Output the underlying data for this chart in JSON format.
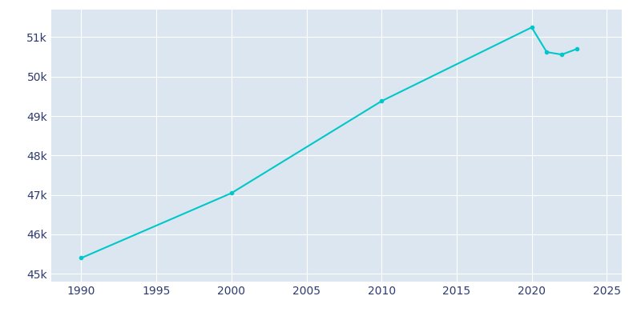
{
  "years": [
    1990,
    2000,
    2010,
    2020,
    2021,
    2022,
    2023
  ],
  "population": [
    45399,
    47045,
    49379,
    51249,
    50623,
    50560,
    50700
  ],
  "line_color": "#00C8C8",
  "marker_style": "o",
  "marker_size": 3,
  "line_width": 1.5,
  "fig_bg_color": "#FFFFFF",
  "plot_bg_color": "#DCE6F0",
  "grid_color": "#FFFFFF",
  "tick_color": "#2E3A6E",
  "xlim": [
    1988,
    2026
  ],
  "ylim": [
    44800,
    51700
  ],
  "xticks": [
    1990,
    1995,
    2000,
    2005,
    2010,
    2015,
    2020,
    2025
  ],
  "yticks": [
    45000,
    46000,
    47000,
    48000,
    49000,
    50000,
    51000
  ],
  "ytick_labels": [
    "45k",
    "46k",
    "47k",
    "48k",
    "49k",
    "50k",
    "51k"
  ],
  "tick_fontsize": 10
}
